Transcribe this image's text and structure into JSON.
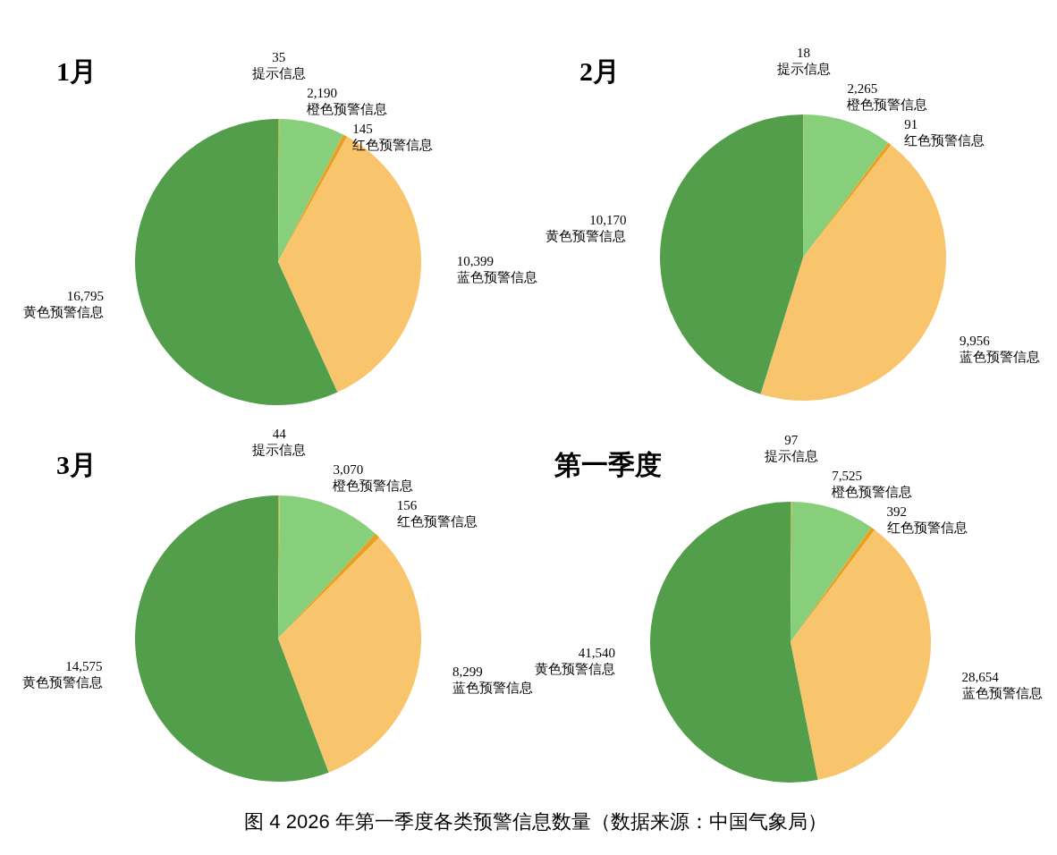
{
  "chart_data": [
    {
      "type": "pie",
      "title": "1月",
      "categories": [
        "提示信息",
        "橙色预警信息",
        "红色预警信息",
        "蓝色预警信息",
        "黄色预警信息"
      ],
      "values": [
        35,
        2190,
        145,
        10399,
        16795
      ],
      "colors": [
        "#c9b24a",
        "#88cf7c",
        "#e8a020",
        "#f9c56c",
        "#529e4a"
      ],
      "value_labels": [
        "35",
        "2,190",
        "145",
        "10,399",
        "16,795"
      ]
    },
    {
      "type": "pie",
      "title": "2月",
      "categories": [
        "提示信息",
        "橙色预警信息",
        "红色预警信息",
        "蓝色预警信息",
        "黄色预警信息"
      ],
      "values": [
        18,
        2265,
        91,
        9956,
        10170
      ],
      "colors": [
        "#c9b24a",
        "#88cf7c",
        "#e8a020",
        "#f9c56c",
        "#529e4a"
      ],
      "value_labels": [
        "18",
        "2,265",
        "91",
        "9,956",
        "10,170"
      ]
    },
    {
      "type": "pie",
      "title": "3月",
      "categories": [
        "提示信息",
        "橙色预警信息",
        "红色预警信息",
        "蓝色预警信息",
        "黄色预警信息"
      ],
      "values": [
        44,
        3070,
        156,
        8299,
        14575
      ],
      "colors": [
        "#c9b24a",
        "#88cf7c",
        "#e8a020",
        "#f9c56c",
        "#529e4a"
      ],
      "value_labels": [
        "44",
        "3,070",
        "156",
        "8,299",
        "14,575"
      ]
    },
    {
      "type": "pie",
      "title": "第一季度",
      "categories": [
        "提示信息",
        "橙色预警信息",
        "红色预警信息",
        "蓝色预警信息",
        "黄色预警信息"
      ],
      "values": [
        97,
        7525,
        392,
        28654,
        41540
      ],
      "colors": [
        "#c9b24a",
        "#88cf7c",
        "#e8a020",
        "#f9c56c",
        "#529e4a"
      ],
      "value_labels": [
        "97",
        "7,525",
        "392",
        "28,654",
        "41,540"
      ],
      "annotations": [
        "图 4 2026 年第一季度各类预警信息数量（数据来源：中国气象局）"
      ]
    }
  ]
}
